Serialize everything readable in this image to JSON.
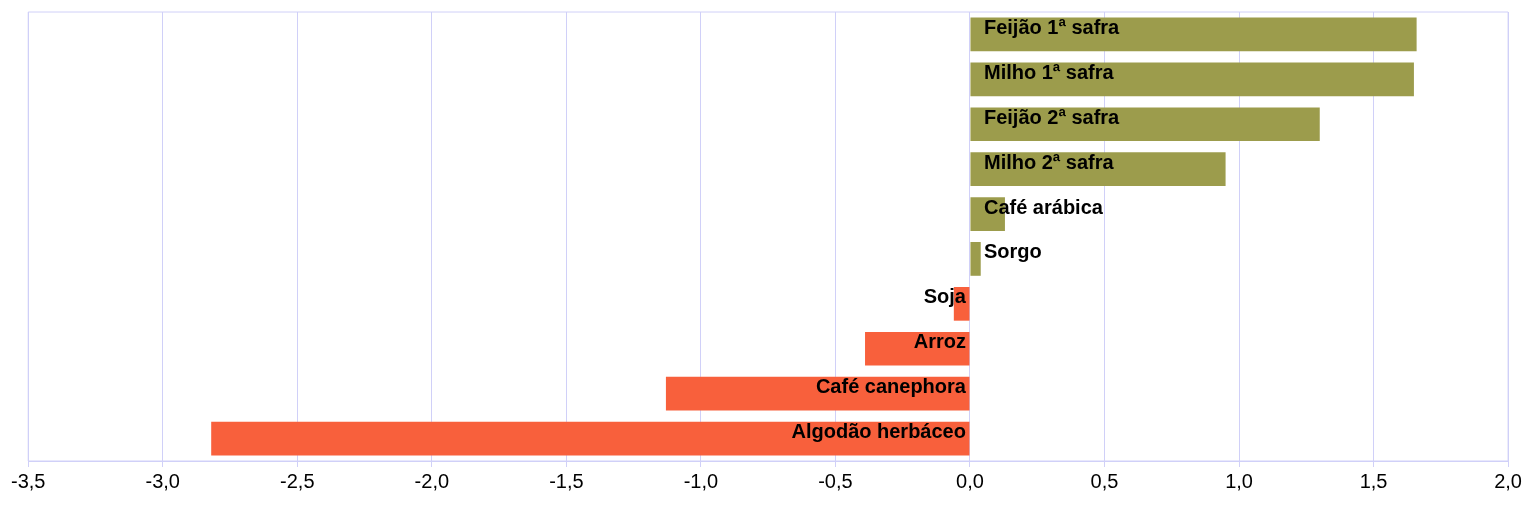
{
  "chart_data": {
    "type": "bar",
    "orientation": "horizontal",
    "categories": [
      "Feijão 1ª safra",
      "Milho 1ª safra",
      "Feijão 2ª safra",
      "Milho 2ª safra",
      "Café arábica",
      "Sorgo",
      "Soja",
      "Arroz",
      "Café canephora",
      "Algodão herbáceo"
    ],
    "values": [
      1.66,
      1.65,
      1.3,
      0.95,
      0.13,
      0.04,
      -0.06,
      -0.39,
      -1.13,
      -2.82
    ],
    "colors": [
      "#9c9c4c",
      "#9c9c4c",
      "#9c9c4c",
      "#9c9c4c",
      "#9c9c4c",
      "#9c9c4c",
      "#f8603c",
      "#f8603c",
      "#f8603c",
      "#f8603c"
    ],
    "xlim": [
      -3.5,
      2.0
    ],
    "xticks": [
      {
        "value": -3.5,
        "label": "-3,5"
      },
      {
        "value": -3.0,
        "label": "-3,0"
      },
      {
        "value": -2.5,
        "label": "-2,5"
      },
      {
        "value": -2.0,
        "label": "-2,0"
      },
      {
        "value": -1.5,
        "label": "-1,5"
      },
      {
        "value": -1.0,
        "label": "-1,0"
      },
      {
        "value": -0.5,
        "label": "-0,5"
      },
      {
        "value": 0.0,
        "label": "0,0"
      },
      {
        "value": 0.5,
        "label": "0,5"
      },
      {
        "value": 1.0,
        "label": "1,0"
      },
      {
        "value": 1.5,
        "label": "1,5"
      },
      {
        "value": 2.0,
        "label": "2,0"
      }
    ],
    "grid": "x",
    "tick_labels": "x"
  }
}
